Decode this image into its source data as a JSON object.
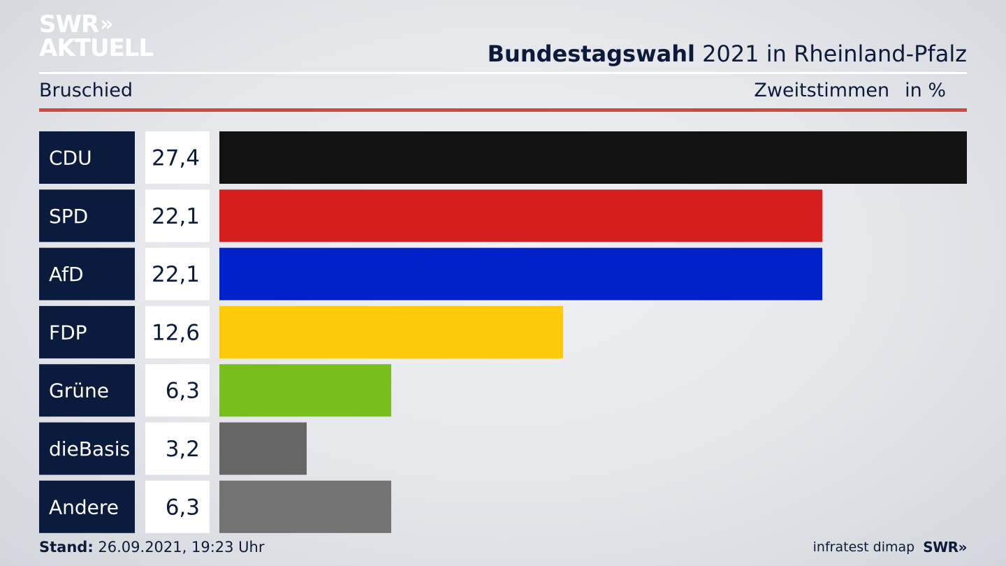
{
  "brand": {
    "line1": "SWR",
    "line2": "AKTUELL",
    "chevrons": "»"
  },
  "header": {
    "title_bold": "Bundestagswahl",
    "title_rest": " 2021 in Rheinland-Pfalz",
    "region": "Bruschied",
    "metric": "Zweitstimmen",
    "unit": "in %"
  },
  "footer": {
    "stand_label": "Stand:",
    "stand_value": " 26.09.2021, 19:23 Uhr",
    "source": "infratest dimap",
    "broadcaster": "SWR»"
  },
  "colors": {
    "label_bg": "#0b1b3d",
    "value_bg": "#ffffff",
    "accent_rule": "#cd4a3f"
  },
  "chart_data": {
    "type": "bar",
    "orientation": "horizontal",
    "categories": [
      "CDU",
      "SPD",
      "AfD",
      "FDP",
      "Grüne",
      "dieBasis",
      "Andere"
    ],
    "values": [
      27.4,
      22.1,
      22.1,
      12.6,
      6.3,
      3.2,
      6.3
    ],
    "value_labels": [
      "27,4",
      "22,1",
      "22,1",
      "12,6",
      "6,3",
      "3,2",
      "6,3"
    ],
    "colors": [
      "#121212",
      "#d81f1f",
      "#0021c9",
      "#fdcb09",
      "#78be1c",
      "#666666",
      "#727272"
    ],
    "xlim": [
      0,
      27.4
    ]
  }
}
